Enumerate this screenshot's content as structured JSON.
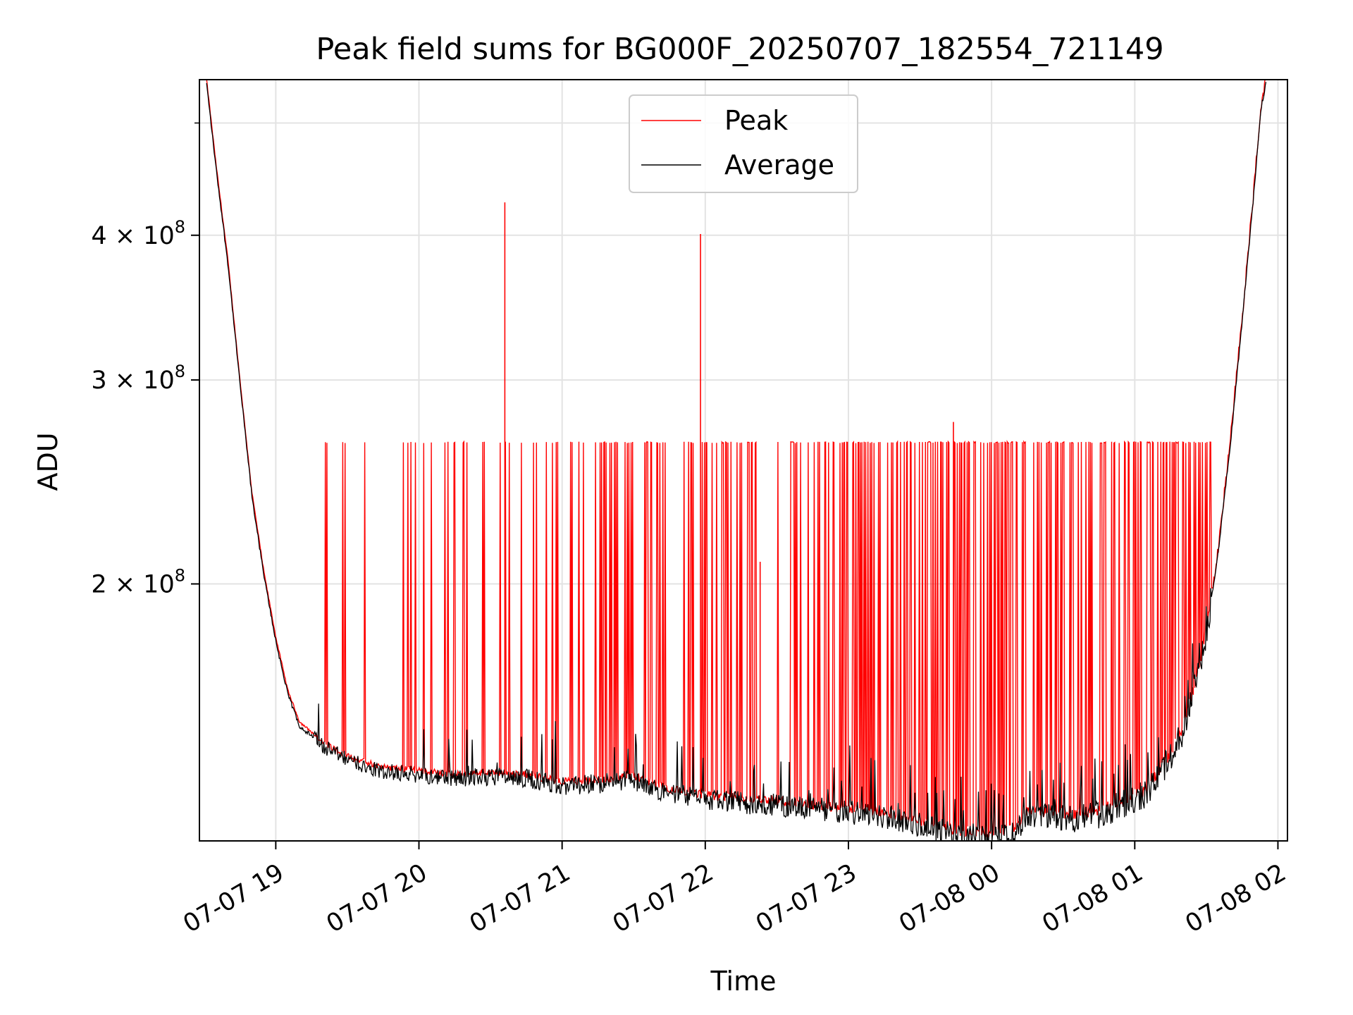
{
  "chart_data": {
    "type": "line",
    "title": "Peak field sums for BG000F_20250707_182554_721149",
    "xlabel": "Time",
    "ylabel": "ADU",
    "y_scale": "log",
    "ylim": [
      120000000,
      545000000
    ],
    "xlim": [
      "2025-07-07 18:28",
      "2025-07-08 02:04"
    ],
    "grid": true,
    "legend_position": "top-center",
    "x_ticks": [
      {
        "value": "2025-07-07 19:00",
        "label": "07-07 19"
      },
      {
        "value": "2025-07-07 20:00",
        "label": "07-07 20"
      },
      {
        "value": "2025-07-07 21:00",
        "label": "07-07 21"
      },
      {
        "value": "2025-07-07 22:00",
        "label": "07-07 22"
      },
      {
        "value": "2025-07-07 23:00",
        "label": "07-07 23"
      },
      {
        "value": "2025-07-08 00:00",
        "label": "07-08 00"
      },
      {
        "value": "2025-07-08 01:00",
        "label": "07-08 01"
      },
      {
        "value": "2025-07-08 02:00",
        "label": "07-08 02"
      }
    ],
    "y_ticks": [
      {
        "value": 200000000,
        "label": "2 × 10⁸",
        "mantissa": "2",
        "exponent": "8"
      },
      {
        "value": 300000000,
        "label": "3 × 10⁸",
        "mantissa": "3",
        "exponent": "8"
      },
      {
        "value": 400000000,
        "label": "4 × 10⁸",
        "mantissa": "4",
        "exponent": "8"
      }
    ],
    "series": [
      {
        "name": "Peak",
        "color": "#ff0000",
        "baseline": [
          [
            "2025-07-07 18:31",
            545000000
          ],
          [
            "2025-07-07 18:35",
            460000000
          ],
          [
            "2025-07-07 18:40",
            380000000
          ],
          [
            "2025-07-07 18:45",
            300000000
          ],
          [
            "2025-07-07 18:50",
            240000000
          ],
          [
            "2025-07-07 18:55",
            205000000
          ],
          [
            "2025-07-07 19:00",
            180000000
          ],
          [
            "2025-07-07 19:05",
            162000000
          ],
          [
            "2025-07-07 19:10",
            152000000
          ],
          [
            "2025-07-07 19:20",
            146000000
          ],
          [
            "2025-07-07 19:30",
            142000000
          ],
          [
            "2025-07-07 19:45",
            139000000
          ],
          [
            "2025-07-07 20:00",
            138000000
          ],
          [
            "2025-07-07 20:15",
            137000000
          ],
          [
            "2025-07-07 20:30",
            137500000
          ],
          [
            "2025-07-07 20:45",
            137000000
          ],
          [
            "2025-07-07 21:00",
            135000000
          ],
          [
            "2025-07-07 21:15",
            135500000
          ],
          [
            "2025-07-07 21:30",
            136500000
          ],
          [
            "2025-07-07 21:45",
            133000000
          ],
          [
            "2025-07-07 22:00",
            131500000
          ],
          [
            "2025-07-07 22:15",
            130500000
          ],
          [
            "2025-07-07 22:30",
            130000000
          ],
          [
            "2025-07-07 22:45",
            129000000
          ],
          [
            "2025-07-07 23:00",
            128000000
          ],
          [
            "2025-07-07 23:15",
            127000000
          ],
          [
            "2025-07-07 23:30",
            125000000
          ],
          [
            "2025-07-07 23:45",
            122500000
          ],
          [
            "2025-07-08 00:00",
            122000000
          ],
          [
            "2025-07-08 00:10",
            123500000
          ],
          [
            "2025-07-08 00:15",
            127500000
          ],
          [
            "2025-07-08 00:25",
            127000000
          ],
          [
            "2025-07-08 00:35",
            126500000
          ],
          [
            "2025-07-08 00:45",
            127500000
          ],
          [
            "2025-07-08 00:55",
            130000000
          ],
          [
            "2025-07-08 01:05",
            133000000
          ],
          [
            "2025-07-08 01:15",
            143000000
          ],
          [
            "2025-07-08 01:20",
            150000000
          ],
          [
            "2025-07-08 01:25",
            163000000
          ],
          [
            "2025-07-08 01:30",
            183000000
          ],
          [
            "2025-07-08 01:35",
            215000000
          ],
          [
            "2025-07-08 01:40",
            265000000
          ],
          [
            "2025-07-08 01:45",
            340000000
          ],
          [
            "2025-07-08 01:50",
            440000000
          ],
          [
            "2025-07-08 01:53",
            520000000
          ],
          [
            "2025-07-08 01:55",
            545000000
          ]
        ],
        "spikes": [
          [
            "2025-07-07 20:36",
            427000000
          ],
          [
            "2025-07-07 21:58",
            401000000
          ],
          [
            "2025-07-07 23:44",
            276000000
          ],
          [
            "2025-07-07 22:23",
            209000000
          ]
        ],
        "plateau_value": 265000000,
        "plateau_range": [
          "2025-07-07 19:16",
          "2025-07-08 01:32"
        ]
      },
      {
        "name": "Average",
        "color": "#000000",
        "baseline_offset_fraction": -0.008
      }
    ]
  }
}
